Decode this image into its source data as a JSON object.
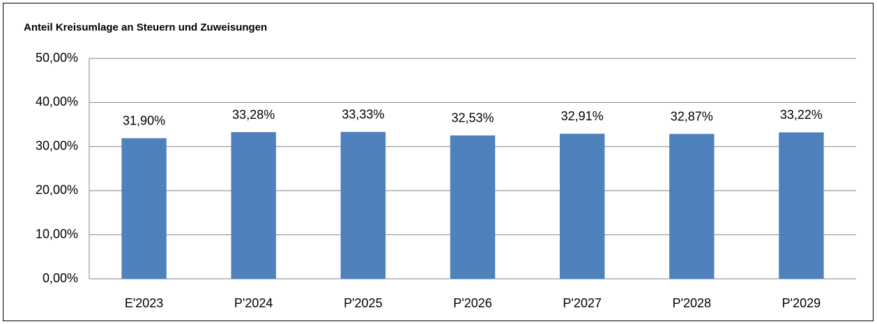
{
  "chart_data": {
    "type": "bar",
    "title": "Anteil Kreisumlage an Steuern und Zuweisungen",
    "categories": [
      "E'2023",
      "P'2024",
      "P'2025",
      "P'2026",
      "P'2027",
      "P'2028",
      "P'2029"
    ],
    "values": [
      31.9,
      33.28,
      33.33,
      32.53,
      32.91,
      32.87,
      33.22
    ],
    "value_labels": [
      "31,90%",
      "33,28%",
      "33,33%",
      "32,53%",
      "32,91%",
      "32,87%",
      "33,22%"
    ],
    "color": "#4f81bd",
    "ylim": [
      0,
      50
    ],
    "yticks": [
      {
        "value": 0,
        "label": "0,00%"
      },
      {
        "value": 10,
        "label": "10,00%"
      },
      {
        "value": 20,
        "label": "20,00%"
      },
      {
        "value": 30,
        "label": "30,00%"
      },
      {
        "value": 40,
        "label": "40,00%"
      },
      {
        "value": 50,
        "label": "50,00%"
      }
    ],
    "grid": true
  }
}
